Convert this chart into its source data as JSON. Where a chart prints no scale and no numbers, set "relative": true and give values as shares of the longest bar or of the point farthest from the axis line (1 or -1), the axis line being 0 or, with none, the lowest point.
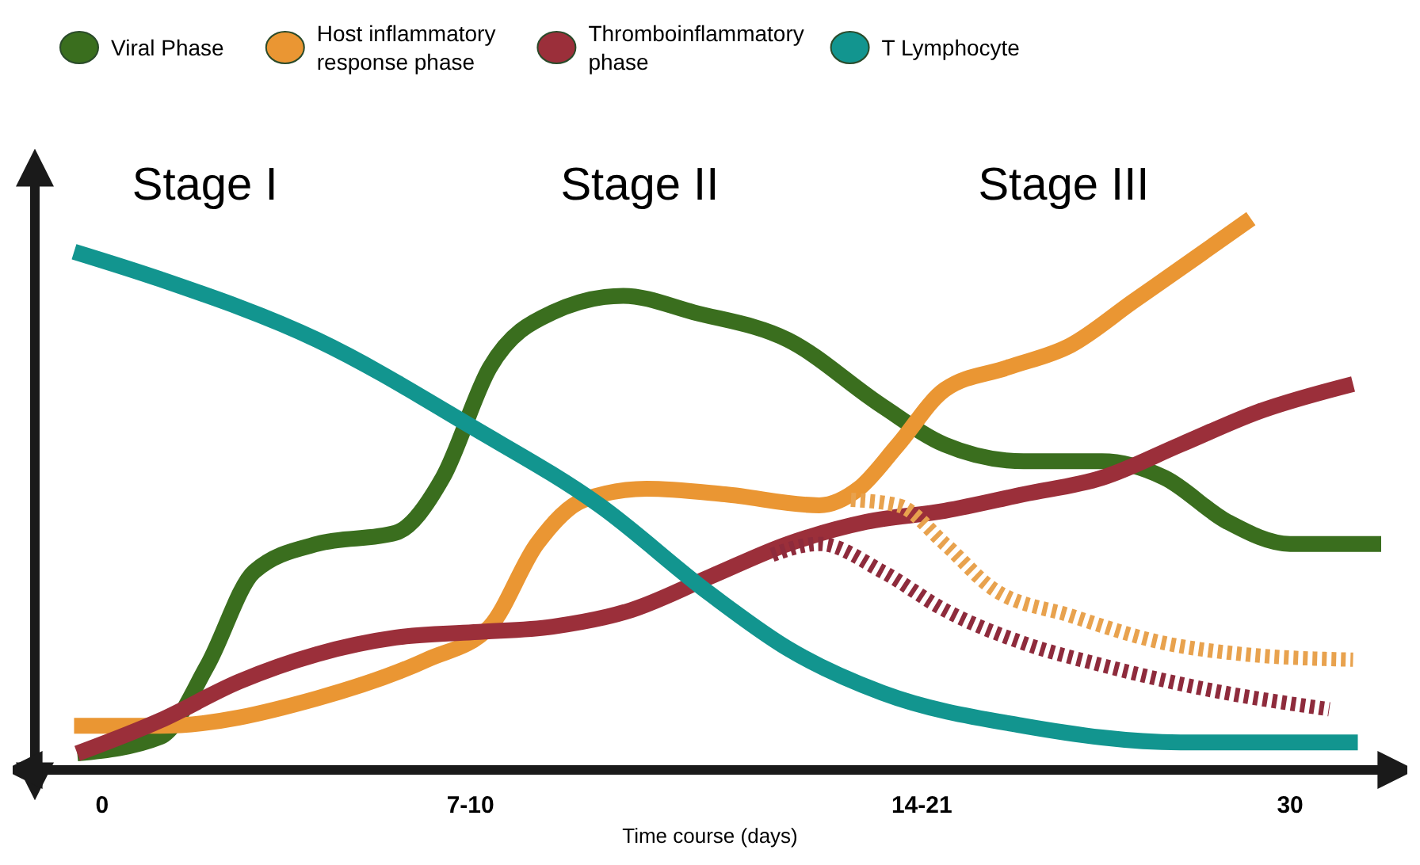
{
  "chart_data": {
    "type": "line",
    "relative": true,
    "xlabel": "Time course (days)",
    "xlim": [
      -1.7,
      32.4
    ],
    "xticks": [
      {
        "value": 0,
        "label": "0"
      },
      {
        "value": 9.3,
        "label": "7-10"
      },
      {
        "value": 20.7,
        "label": "14-21"
      },
      {
        "value": 30,
        "label": "30"
      }
    ],
    "legend": "top",
    "marker": "none",
    "line_style": "solid",
    "annotations": [
      "Stage I",
      "Stage II",
      "Stage III"
    ],
    "series": [
      {
        "name": "Viral Phase",
        "color": "#3a6e1e",
        "x": [
          -0.63,
          1.47,
          2.66,
          3.84,
          5.43,
          7.41,
          8.6,
          9.79,
          11.38,
          13.16,
          14.94,
          17.32,
          19.7,
          21.28,
          23.27,
          25.25,
          26.83,
          28.42,
          30.0,
          32.3
        ],
        "values": [
          0.03,
          0.06,
          0.19,
          0.36,
          0.41,
          0.43,
          0.53,
          0.73,
          0.83,
          0.86,
          0.83,
          0.78,
          0.66,
          0.59,
          0.56,
          0.56,
          0.53,
          0.45,
          0.41,
          0.41
        ]
      },
      {
        "name": "Host inflammatory response phase",
        "color": "#ea9633",
        "x": [
          -0.71,
          1.47,
          5.43,
          8.2,
          9.79,
          10.98,
          12.17,
          13.75,
          15.73,
          18.11,
          19.1,
          20.1,
          21.28,
          22.87,
          24.45,
          26.04,
          27.63,
          29.01
        ],
        "values": [
          0.08,
          0.08,
          0.13,
          0.2,
          0.26,
          0.41,
          0.49,
          0.51,
          0.5,
          0.48,
          0.51,
          0.59,
          0.69,
          0.73,
          0.77,
          0.85,
          0.93,
          1.0
        ]
      },
      {
        "name": "Thromboinflammatory phase",
        "color": "#9b2f3a",
        "x": [
          -0.63,
          1.47,
          3.45,
          5.43,
          7.41,
          9.39,
          11.38,
          13.36,
          15.34,
          17.32,
          19.3,
          21.28,
          23.27,
          25.25,
          27.23,
          29.21,
          31.59
        ],
        "values": [
          0.03,
          0.09,
          0.16,
          0.21,
          0.24,
          0.25,
          0.26,
          0.29,
          0.35,
          0.41,
          0.45,
          0.47,
          0.5,
          0.53,
          0.59,
          0.65,
          0.7
        ]
      },
      {
        "name": "T Lymphocyte",
        "color": "#12958f",
        "x": [
          -0.71,
          1.47,
          5.43,
          9.39,
          12.56,
          15.34,
          17.32,
          19.7,
          23.27,
          27.23,
          31.71
        ],
        "values": [
          0.94,
          0.89,
          0.78,
          0.62,
          0.48,
          0.32,
          0.22,
          0.14,
          0.08,
          0.05,
          0.05
        ]
      },
      {
        "color": "#e8a24e",
        "line_style": "dotted",
        "x": [
          18.91,
          20.1,
          21.28,
          22.47,
          24.45,
          26.83,
          28.81,
          31.59
        ],
        "values": [
          0.49,
          0.48,
          0.41,
          0.33,
          0.28,
          0.23,
          0.21,
          0.2
        ]
      },
      {
        "color": "#8e2b3c",
        "line_style": "dotted",
        "x": [
          16.92,
          18.11,
          19.7,
          21.28,
          23.27,
          25.25,
          27.63,
          30.99
        ],
        "values": [
          0.39,
          0.41,
          0.36,
          0.29,
          0.23,
          0.19,
          0.15,
          0.11
        ]
      }
    ]
  }
}
